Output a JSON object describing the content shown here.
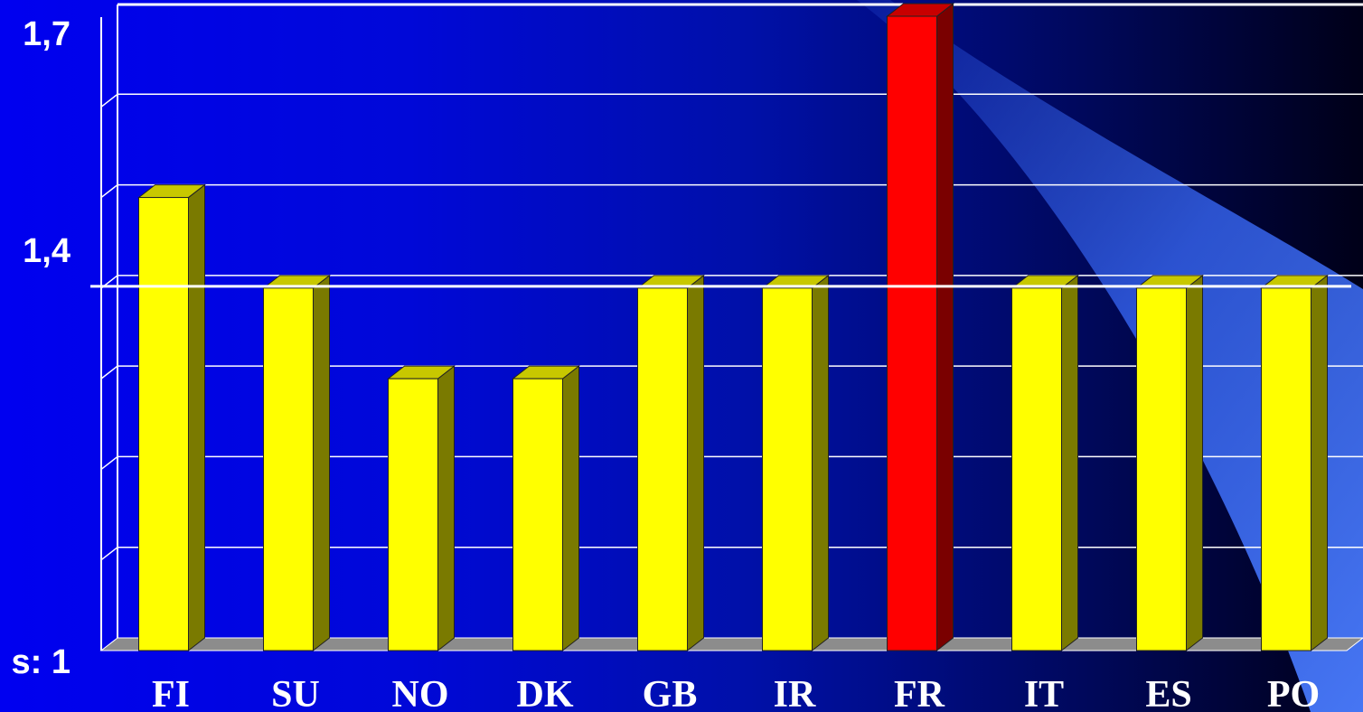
{
  "chart_data": {
    "type": "bar",
    "style": "3d-column",
    "title": "",
    "xlabel": "",
    "ylabel": "",
    "categories": [
      "FI",
      "SU",
      "NO",
      "DK",
      "GB",
      "IR",
      "FR",
      "IT",
      "ES",
      "PO"
    ],
    "values": [
      1.5,
      1.4,
      1.3,
      1.3,
      1.4,
      1.4,
      1.7,
      1.4,
      1.4,
      1.4
    ],
    "highlight_index": 6,
    "ylim": [
      1.0,
      1.7
    ],
    "ytick_labels": [
      {
        "value": 1.7,
        "label": "1,7"
      },
      {
        "value": 1.4,
        "label": "1,4"
      },
      {
        "value": 1.0,
        "label": "s: 1"
      }
    ],
    "reference_line": 1.4,
    "grid": true,
    "legend": "none",
    "colors": {
      "bar": "#ffff00",
      "bar_top": "#c8c800",
      "bar_side": "#7a7a00",
      "highlight": "#ff0000",
      "highlight_top": "#c80000",
      "highlight_side": "#7a0000",
      "gridline": "#ffffff",
      "floor": "#8c8c8c",
      "text": "#ffffff"
    }
  }
}
